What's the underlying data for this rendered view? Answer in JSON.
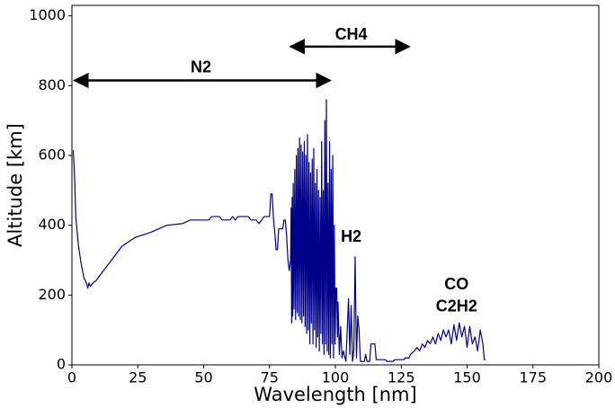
{
  "chart_data": {
    "type": "line",
    "xlabel": "Wavelength [nm]",
    "ylabel": "Altitude [km]",
    "xlim": [
      0,
      200
    ],
    "xticks": [
      0,
      25,
      50,
      75,
      100,
      125,
      150,
      175,
      200
    ],
    "ylim": [
      0,
      1030
    ],
    "yticks": [
      0,
      200,
      400,
      600,
      800,
      1000
    ],
    "grid": false,
    "annotations": [
      "N2",
      "CH4",
      "H2",
      "CO",
      "C2H2"
    ],
    "series": [
      {
        "color": "#00008b",
        "x": [
          0.5,
          1,
          1.5,
          2.5,
          3.5,
          4.5,
          5.5,
          6,
          6.5,
          7,
          8,
          9,
          10,
          11,
          12,
          13,
          14,
          15,
          16,
          17,
          18,
          19,
          20,
          22,
          24,
          26,
          30,
          33,
          36,
          42,
          45,
          52,
          53,
          56,
          57,
          60,
          61,
          62,
          63,
          67,
          68,
          70,
          71,
          72,
          73,
          75,
          75.5,
          76,
          76.5,
          77,
          77.5,
          78,
          78.5,
          80,
          80.5,
          81,
          81.5,
          82,
          82.5,
          83,
          83.2,
          83.4,
          83.6,
          83.8,
          84,
          84.3,
          84.6,
          84.9,
          85.2,
          85.5,
          85.8,
          86.1,
          86.4,
          86.7,
          87,
          87.3,
          87.6,
          87.9,
          88.2,
          88.5,
          88.8,
          89.1,
          89.4,
          89.7,
          90,
          90.3,
          90.6,
          90.9,
          91.2,
          91.5,
          91.8,
          92.1,
          92.4,
          92.7,
          93,
          93.3,
          93.6,
          93.9,
          94.2,
          94.5,
          94.8,
          95.1,
          95.4,
          95.7,
          96,
          96.3,
          96.6,
          96.9,
          97.2,
          97.5,
          97.8,
          98.1,
          98.4,
          98.7,
          99,
          99.3,
          99.6,
          99.9,
          100.2,
          100.5,
          100.8,
          101,
          101.5,
          102,
          102.5,
          103,
          104,
          105,
          105.5,
          106,
          106.5,
          107,
          107.5,
          108,
          108.5,
          109,
          109.5,
          111,
          111.5,
          112,
          113,
          113.5,
          115,
          115.5,
          119,
          119.5,
          122,
          122.5,
          126,
          126.5,
          128,
          128.5,
          130,
          131,
          132,
          133,
          134,
          135,
          136,
          137,
          138,
          139,
          140,
          141,
          142,
          143,
          144,
          145,
          146,
          147,
          148,
          149,
          150,
          151,
          152,
          153,
          154,
          155,
          156,
          156.5,
          157
        ],
        "values": [
          615,
          540,
          420,
          340,
          290,
          250,
          235,
          220,
          235,
          225,
          235,
          240,
          250,
          260,
          270,
          280,
          290,
          300,
          310,
          320,
          330,
          340,
          345,
          355,
          365,
          370,
          380,
          390,
          400,
          405,
          415,
          415,
          425,
          425,
          415,
          415,
          425,
          415,
          425,
          425,
          415,
          415,
          405,
          415,
          425,
          425,
          490,
          490,
          420,
          380,
          330,
          330,
          390,
          390,
          415,
          415,
          370,
          300,
          270,
          300,
          450,
          120,
          480,
          140,
          520,
          160,
          560,
          130,
          600,
          150,
          620,
          140,
          650,
          130,
          630,
          120,
          610,
          140,
          640,
          110,
          600,
          90,
          660,
          100,
          580,
          60,
          550,
          120,
          590,
          60,
          620,
          100,
          520,
          50,
          560,
          80,
          500,
          40,
          480,
          90,
          640,
          60,
          500,
          30,
          700,
          60,
          760,
          40,
          520,
          30,
          640,
          20,
          560,
          60,
          600,
          20,
          400,
          60,
          220,
          220,
          80,
          180,
          30,
          110,
          20,
          40,
          10,
          190,
          30,
          170,
          10,
          40,
          310,
          20,
          140,
          100,
          10,
          10,
          30,
          10,
          10,
          60,
          60,
          15,
          15,
          10,
          10,
          15,
          15,
          20,
          20,
          30,
          40,
          50,
          40,
          60,
          50,
          70,
          60,
          80,
          60,
          90,
          70,
          100,
          80,
          100,
          60,
          115,
          70,
          120,
          80,
          110,
          50,
          110,
          60,
          80,
          40,
          100,
          60,
          15,
          15
        ]
      }
    ]
  }
}
